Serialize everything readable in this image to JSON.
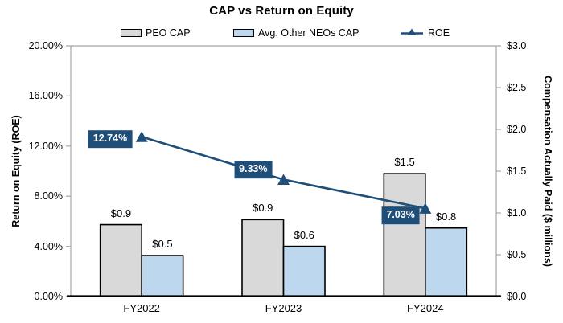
{
  "chart_data": {
    "type": "bar+line combo, dual y-axes",
    "title": "CAP vs Return on Equity",
    "categories": [
      "FY2022",
      "FY2023",
      "FY2024"
    ],
    "series": [
      {
        "name": "PEO CAP",
        "type": "bar",
        "axis": "right",
        "values": [
          0.86,
          0.92,
          1.47
        ],
        "labels": [
          "$0.9",
          "$0.9",
          "$1.5"
        ],
        "fill": "#D9D9D9",
        "border": "#000000"
      },
      {
        "name": "Avg. Other NEOs CAP",
        "type": "bar",
        "axis": "right",
        "values": [
          0.49,
          0.6,
          0.82
        ],
        "labels": [
          "$0.5",
          "$0.6",
          "$0.8"
        ],
        "fill": "#BDD7EE",
        "border": "#000000"
      },
      {
        "name": "ROE",
        "type": "line",
        "axis": "left",
        "values": [
          12.74,
          9.33,
          7.03
        ],
        "labels": [
          "12.74%",
          "9.33%",
          "7.03%"
        ],
        "color": "#1F4E79",
        "marker": "triangle-up",
        "label_style": "white-bold-on-navy-box"
      }
    ],
    "left_axis": {
      "title": "Return on Equity (ROE)",
      "min": 0,
      "max": 20,
      "ticks": [
        "20.00%",
        "16.00%",
        "12.00%",
        "8.00%",
        "4.00%",
        "0.00%"
      ]
    },
    "right_axis": {
      "title": "Compensation Actually Paid ($ millions)",
      "min": 0,
      "max": 3,
      "ticks": [
        "$3.0",
        "$2.5",
        "$2.0",
        "$1.5",
        "$1.0",
        "$0.5",
        "$0.0"
      ]
    },
    "grid": false,
    "legend_position": "top"
  },
  "colors": {
    "navy": "#1F4E79",
    "gray_bar": "#D9D9D9",
    "blue_bar": "#BDD7EE",
    "axis_line": "#A6A6A6",
    "baseline": "#000000",
    "text": "#000000",
    "background": "#FFFFFF"
  }
}
